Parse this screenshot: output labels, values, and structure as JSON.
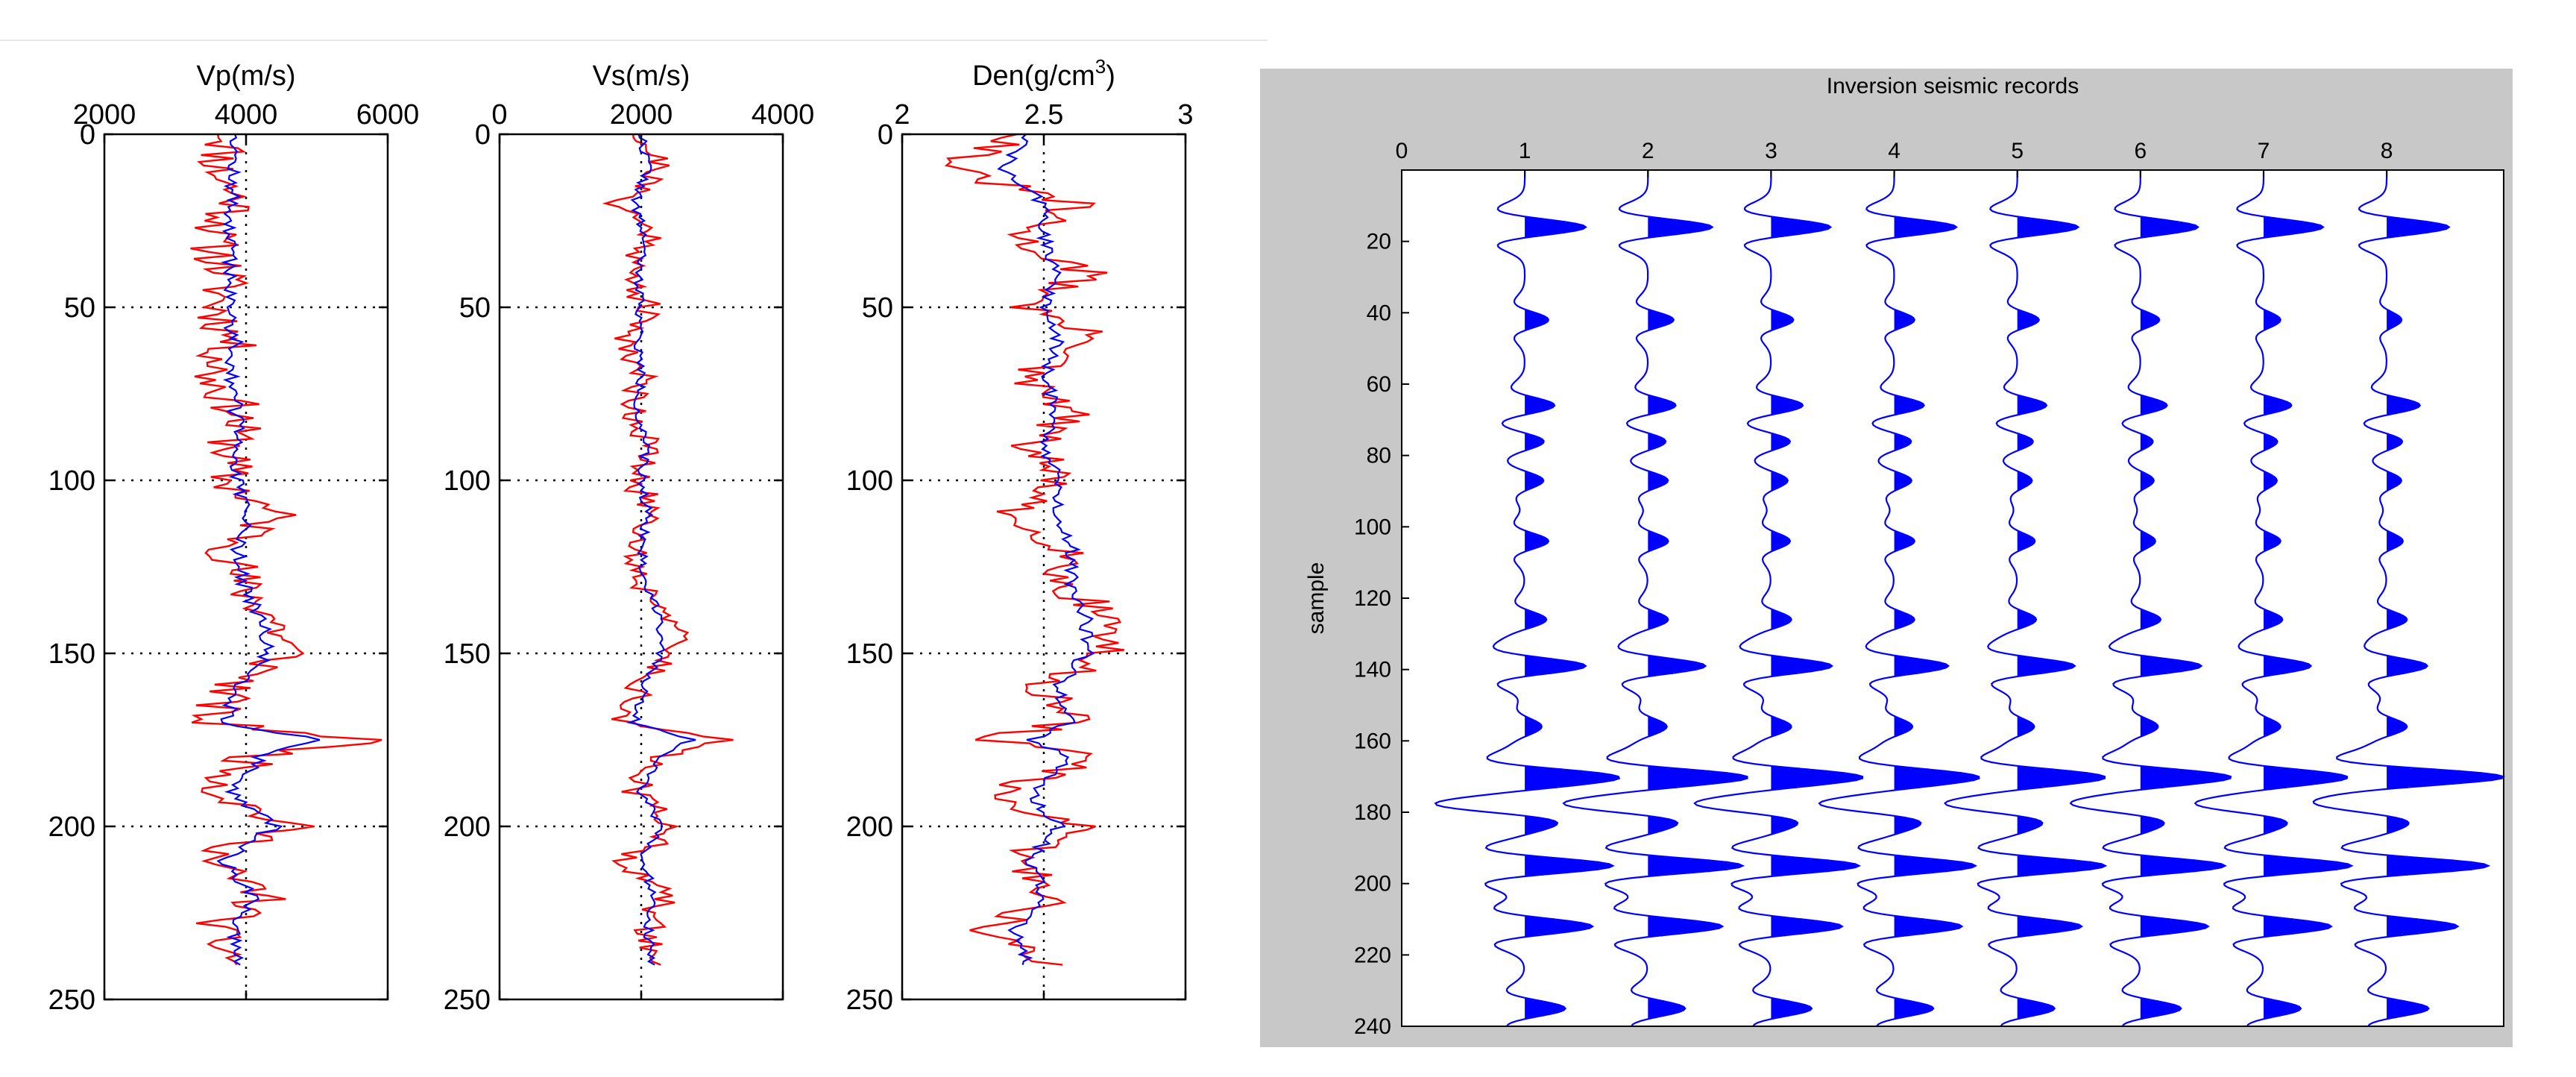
{
  "chart_data": [
    {
      "type": "line",
      "title": "Vp(m/s)",
      "xlabel": "",
      "ylabel": "",
      "xlim": [
        2000,
        6000
      ],
      "ylim": [
        0,
        250
      ],
      "xticks": [
        "2000",
        "4000",
        "6000"
      ],
      "yticks": [
        "0",
        "50",
        "100",
        "150",
        "200",
        "250"
      ],
      "grid": true,
      "series": [
        {
          "name": "red",
          "color": "#ff0000",
          "depth": [
            0,
            10,
            20,
            30,
            40,
            50,
            60,
            70,
            80,
            90,
            100,
            110,
            120,
            130,
            140,
            150,
            160,
            170,
            175,
            180,
            190,
            200,
            210,
            220,
            230,
            240
          ],
          "values": [
            3800,
            3600,
            3900,
            3500,
            3700,
            3600,
            3800,
            3500,
            3900,
            3800,
            3700,
            4400,
            3800,
            3900,
            4400,
            4600,
            3800,
            3400,
            5800,
            4100,
            3600,
            4600,
            3400,
            4300,
            3500,
            3900
          ]
        },
        {
          "name": "blue",
          "color": "#0000ff",
          "depth": [
            0,
            10,
            20,
            30,
            40,
            50,
            60,
            70,
            80,
            90,
            100,
            110,
            120,
            130,
            140,
            150,
            160,
            170,
            175,
            180,
            190,
            200,
            210,
            220,
            230,
            240
          ],
          "values": [
            3900,
            3800,
            3800,
            3750,
            3800,
            3750,
            3850,
            3800,
            3850,
            3900,
            3850,
            4000,
            3900,
            3950,
            4200,
            4300,
            3900,
            3700,
            5000,
            4200,
            3800,
            4400,
            3700,
            4100,
            3800,
            3900
          ]
        }
      ]
    },
    {
      "type": "line",
      "title": "Vs(m/s)",
      "xlabel": "",
      "ylabel": "",
      "xlim": [
        0,
        4000
      ],
      "ylim": [
        0,
        250
      ],
      "xticks": [
        "0",
        "2000",
        "4000"
      ],
      "yticks": [
        "0",
        "50",
        "100",
        "150",
        "200",
        "250"
      ],
      "grid": true,
      "series": [
        {
          "name": "red",
          "color": "#ff0000",
          "depth": [
            0,
            10,
            20,
            30,
            40,
            50,
            60,
            70,
            80,
            90,
            100,
            110,
            120,
            130,
            140,
            150,
            160,
            170,
            175,
            180,
            190,
            200,
            210,
            220,
            230,
            240
          ],
          "values": [
            2000,
            2300,
            1700,
            2200,
            1800,
            2100,
            1800,
            2000,
            1900,
            2100,
            1900,
            2200,
            1900,
            2000,
            2500,
            2400,
            2000,
            1700,
            3100,
            2300,
            1900,
            2500,
            1800,
            2300,
            2100,
            2200
          ]
        },
        {
          "name": "blue",
          "color": "#0000ff",
          "depth": [
            0,
            10,
            20,
            30,
            40,
            50,
            60,
            70,
            80,
            90,
            100,
            110,
            120,
            130,
            140,
            150,
            160,
            170,
            175,
            180,
            190,
            200,
            210,
            220,
            230,
            240
          ],
          "values": [
            2000,
            2100,
            1900,
            2050,
            1950,
            2000,
            1950,
            2000,
            1950,
            2050,
            2000,
            2100,
            2000,
            2050,
            2300,
            2250,
            2050,
            1900,
            2700,
            2300,
            2000,
            2300,
            2000,
            2200,
            2100,
            2150
          ]
        }
      ]
    },
    {
      "type": "line",
      "title": "Den(g/cm",
      "title_sup": "3",
      "title_end": ")",
      "xlabel": "",
      "ylabel": "",
      "xlim": [
        2,
        3
      ],
      "ylim": [
        0,
        250
      ],
      "xticks": [
        "2",
        "2.5",
        "3"
      ],
      "yticks": [
        "0",
        "50",
        "100",
        "150",
        "200",
        "250"
      ],
      "grid": true,
      "series": [
        {
          "name": "red",
          "color": "#ff0000",
          "depth": [
            0,
            10,
            20,
            30,
            40,
            50,
            60,
            70,
            80,
            90,
            100,
            110,
            120,
            130,
            140,
            150,
            160,
            170,
            175,
            180,
            190,
            200,
            210,
            220,
            230,
            240
          ],
          "values": [
            2.45,
            2.15,
            2.6,
            2.4,
            2.65,
            2.45,
            2.7,
            2.4,
            2.6,
            2.45,
            2.55,
            2.35,
            2.6,
            2.55,
            2.75,
            2.7,
            2.5,
            2.6,
            2.3,
            2.7,
            2.3,
            2.6,
            2.4,
            2.55,
            2.3,
            2.5
          ]
        },
        {
          "name": "blue",
          "color": "#0000ff",
          "depth": [
            0,
            10,
            20,
            30,
            40,
            50,
            60,
            70,
            80,
            90,
            100,
            110,
            120,
            130,
            140,
            150,
            160,
            170,
            175,
            180,
            190,
            200,
            210,
            220,
            230,
            240
          ],
          "values": [
            2.45,
            2.35,
            2.5,
            2.5,
            2.55,
            2.5,
            2.55,
            2.5,
            2.55,
            2.5,
            2.55,
            2.55,
            2.6,
            2.6,
            2.65,
            2.65,
            2.55,
            2.6,
            2.45,
            2.6,
            2.45,
            2.55,
            2.45,
            2.5,
            2.4,
            2.45
          ]
        }
      ]
    },
    {
      "type": "area",
      "title": "Inversion seismic records",
      "xlabel": "",
      "ylabel": "sample",
      "xlim": [
        0,
        8.95
      ],
      "ylim": [
        240,
        0
      ],
      "xticks": [
        "0",
        "1",
        "2",
        "3",
        "4",
        "5",
        "6",
        "7",
        "8"
      ],
      "yticks": [
        "20",
        "40",
        "60",
        "80",
        "100",
        "120",
        "140",
        "160",
        "180",
        "200",
        "220",
        "240"
      ],
      "traces": [
        1,
        2,
        3,
        4,
        5,
        6,
        7,
        8
      ],
      "reflectivity": {
        "sample": [
          16,
          42,
          66,
          76,
          87,
          104,
          126,
          139,
          156,
          170,
          178,
          195,
          212,
          235
        ],
        "amplitude_by_trace": [
          [
            0.9,
            0.35,
            0.45,
            0.3,
            0.28,
            0.35,
            0.32,
            0.9,
            0.25,
            1.2,
            -1.1,
            1.3,
            1.0,
            0.6
          ],
          [
            0.95,
            0.38,
            0.42,
            0.28,
            0.3,
            0.3,
            0.3,
            0.85,
            0.28,
            1.3,
            -1.0,
            1.4,
            1.1,
            0.55
          ],
          [
            0.88,
            0.33,
            0.48,
            0.3,
            0.25,
            0.28,
            0.3,
            0.9,
            0.3,
            1.2,
            -0.9,
            1.3,
            1.05,
            0.6
          ],
          [
            0.92,
            0.3,
            0.45,
            0.27,
            0.26,
            0.3,
            0.3,
            0.8,
            0.27,
            1.1,
            -0.9,
            1.2,
            1.0,
            0.58
          ],
          [
            0.9,
            0.32,
            0.44,
            0.25,
            0.22,
            0.26,
            0.28,
            0.85,
            0.25,
            1.15,
            -0.85,
            1.3,
            0.95,
            0.55
          ],
          [
            0.85,
            0.28,
            0.4,
            0.2,
            0.2,
            0.22,
            0.3,
            0.9,
            0.26,
            1.2,
            -0.8,
            1.25,
            1.0,
            0.6
          ],
          [
            0.88,
            0.25,
            0.42,
            0.22,
            0.2,
            0.25,
            0.28,
            0.7,
            0.25,
            1.1,
            -0.8,
            1.3,
            1.0,
            0.55
          ],
          [
            0.92,
            0.22,
            0.5,
            0.25,
            0.22,
            0.24,
            0.3,
            0.6,
            0.3,
            1.6,
            -0.75,
            1.5,
            1.05,
            0.62
          ]
        ]
      }
    }
  ]
}
